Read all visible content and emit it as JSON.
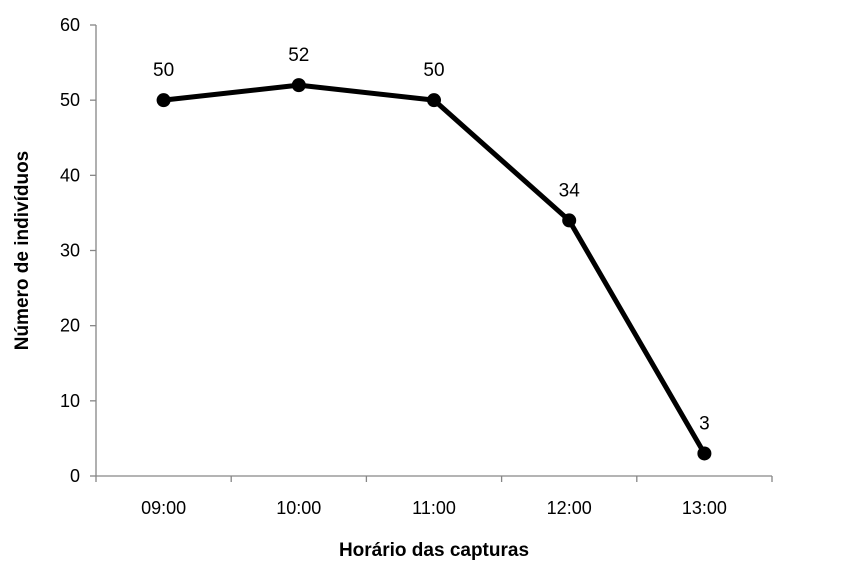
{
  "chart_data": {
    "type": "line",
    "categories": [
      "09:00",
      "10:00",
      "11:00",
      "12:00",
      "13:00"
    ],
    "values": [
      50,
      52,
      50,
      34,
      3
    ],
    "data_labels": [
      "50",
      "52",
      "50",
      "34",
      "3"
    ],
    "xlabel": "Horário das capturas",
    "ylabel": "Número de indivíduos",
    "ylim": [
      0,
      60
    ],
    "yticks": [
      "0",
      "10",
      "20",
      "30",
      "40",
      "50",
      "60"
    ],
    "grid": false,
    "legend": "none",
    "colors": {
      "series": "#000000",
      "axis": "#868686"
    }
  }
}
